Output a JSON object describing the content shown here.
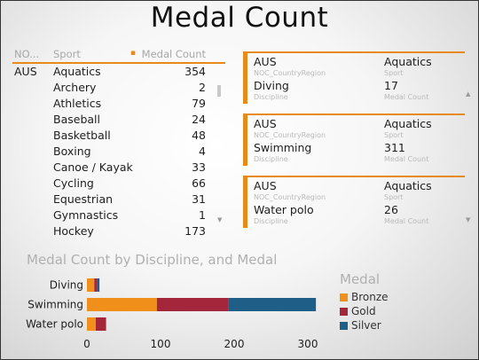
{
  "page": {
    "title": "Medal Count"
  },
  "table": {
    "headers": {
      "noc": "NO...",
      "sport": "Sport",
      "medal_count": "Medal Count"
    },
    "rows": [
      {
        "noc": "AUS",
        "sport": "Aquatics",
        "count": "354"
      },
      {
        "noc": "",
        "sport": "Archery",
        "count": "2"
      },
      {
        "noc": "",
        "sport": "Athletics",
        "count": "79"
      },
      {
        "noc": "",
        "sport": "Baseball",
        "count": "24"
      },
      {
        "noc": "",
        "sport": "Basketball",
        "count": "48"
      },
      {
        "noc": "",
        "sport": "Boxing",
        "count": "4"
      },
      {
        "noc": "",
        "sport": "Canoe / Kayak",
        "count": "33"
      },
      {
        "noc": "",
        "sport": "Cycling",
        "count": "66"
      },
      {
        "noc": "",
        "sport": "Equestrian",
        "count": "31"
      },
      {
        "noc": "",
        "sport": "Gymnastics",
        "count": "1"
      },
      {
        "noc": "",
        "sport": "Hockey",
        "count": "173"
      }
    ]
  },
  "cards": [
    {
      "noc": "AUS",
      "noc_label": "NOC_CountryRegion",
      "sport": "Aquatics",
      "sport_label": "Sport",
      "discipline": "Diving",
      "discipline_label": "Discipline",
      "count": "17",
      "count_label": "Medal Count"
    },
    {
      "noc": "AUS",
      "noc_label": "NOC_CountryRegion",
      "sport": "Aquatics",
      "sport_label": "Sport",
      "discipline": "Swimming",
      "discipline_label": "Discipline",
      "count": "311",
      "count_label": "Medal Count"
    },
    {
      "noc": "AUS",
      "noc_label": "NOC_CountryRegion",
      "sport": "Aquatics",
      "sport_label": "Sport",
      "discipline": "Water polo",
      "discipline_label": "Discipline",
      "count": "26",
      "count_label": "Medal Count"
    }
  ],
  "icons": {
    "sort": "sort-indicator-icon",
    "scroll_down": "scroll-down-arrow-icon",
    "scroll_up": "scroll-up-arrow-icon"
  },
  "chart_data": {
    "type": "bar",
    "orientation": "horizontal",
    "stacked": true,
    "title": "Medal Count by Discipline, and Medal",
    "categories": [
      "Diving",
      "Swimming",
      "Water polo"
    ],
    "series": [
      {
        "name": "Bronze",
        "color": "#f0901a",
        "values": [
          10,
          95,
          12
        ]
      },
      {
        "name": "Gold",
        "color": "#a3263b",
        "values": [
          4,
          97,
          14
        ]
      },
      {
        "name": "Silver",
        "color": "#1f5e86",
        "values": [
          3,
          119,
          0
        ]
      }
    ],
    "xticks": [
      "0",
      "100",
      "200",
      "300"
    ],
    "xlim": [
      0,
      320
    ],
    "legend": {
      "title": "Medal",
      "position": "right"
    },
    "grid": false
  }
}
